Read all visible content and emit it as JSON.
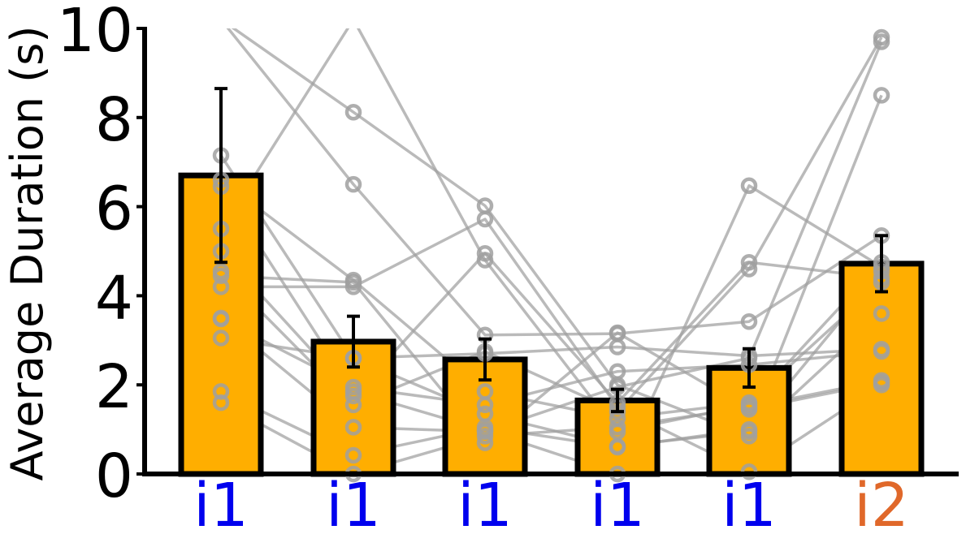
{
  "chart_data": {
    "type": "bar",
    "title": "",
    "xlabel": "",
    "ylabel": "Average Duration (s)",
    "ylim": [
      0,
      10
    ],
    "yticks": [
      0,
      2,
      4,
      6,
      8,
      10
    ],
    "grid": false,
    "categories": [
      "i1",
      "i1",
      "i1",
      "i1",
      "i1",
      "i2"
    ],
    "category_colors": [
      "#0000ee",
      "#0000ee",
      "#0000ee",
      "#0000ee",
      "#0000ee",
      "#e0682a"
    ],
    "bar_color": "#ffae00",
    "bar_edge_color": "#000000",
    "line_color": "#a0a0a0",
    "values": [
      6.7,
      2.97,
      2.57,
      1.65,
      2.38,
      4.72
    ],
    "errors": [
      1.95,
      0.57,
      0.46,
      0.25,
      0.43,
      0.63
    ],
    "individual_series": [
      [
        7.15,
        2.6,
        1.35,
        0.62,
        0.95,
        4.55
      ],
      [
        6.6,
        4.35,
        1.85,
        1.25,
        1.6,
        4.3
      ],
      [
        6.45,
        1.85,
        0.98,
        0.0,
        6.47,
        4.65
      ],
      [
        5.5,
        10.2,
        4.8,
        0.95,
        1.55,
        4.75
      ],
      [
        4.55,
        1.55,
        2.75,
        1.4,
        4.6,
        9.8
      ],
      [
        4.45,
        4.3,
        0.7,
        3.17,
        1.45,
        2.05
      ],
      [
        4.2,
        4.2,
        5.72,
        1.5,
        0.05,
        2.0
      ],
      [
        3.5,
        1.05,
        0.95,
        1.95,
        2.6,
        9.7
      ],
      [
        3.48,
        1.95,
        1.55,
        2.3,
        2.45,
        2.75
      ],
      [
        3.05,
        2.6,
        2.7,
        2.85,
        2.65,
        2.8
      ],
      [
        1.85,
        0.42,
        1.05,
        0.6,
        1.0,
        8.5
      ],
      [
        1.6,
        0.0,
        0.85,
        1.05,
        1.5,
        2.1
      ],
      [
        10.2,
        8.12,
        6.02,
        2.0,
        0.85,
        3.6
      ],
      [
        10.2,
        6.5,
        3.12,
        3.15,
        3.42,
        5.35
      ],
      [
        5.0,
        1.75,
        4.95,
        1.6,
        4.75,
        4.4
      ]
    ]
  }
}
